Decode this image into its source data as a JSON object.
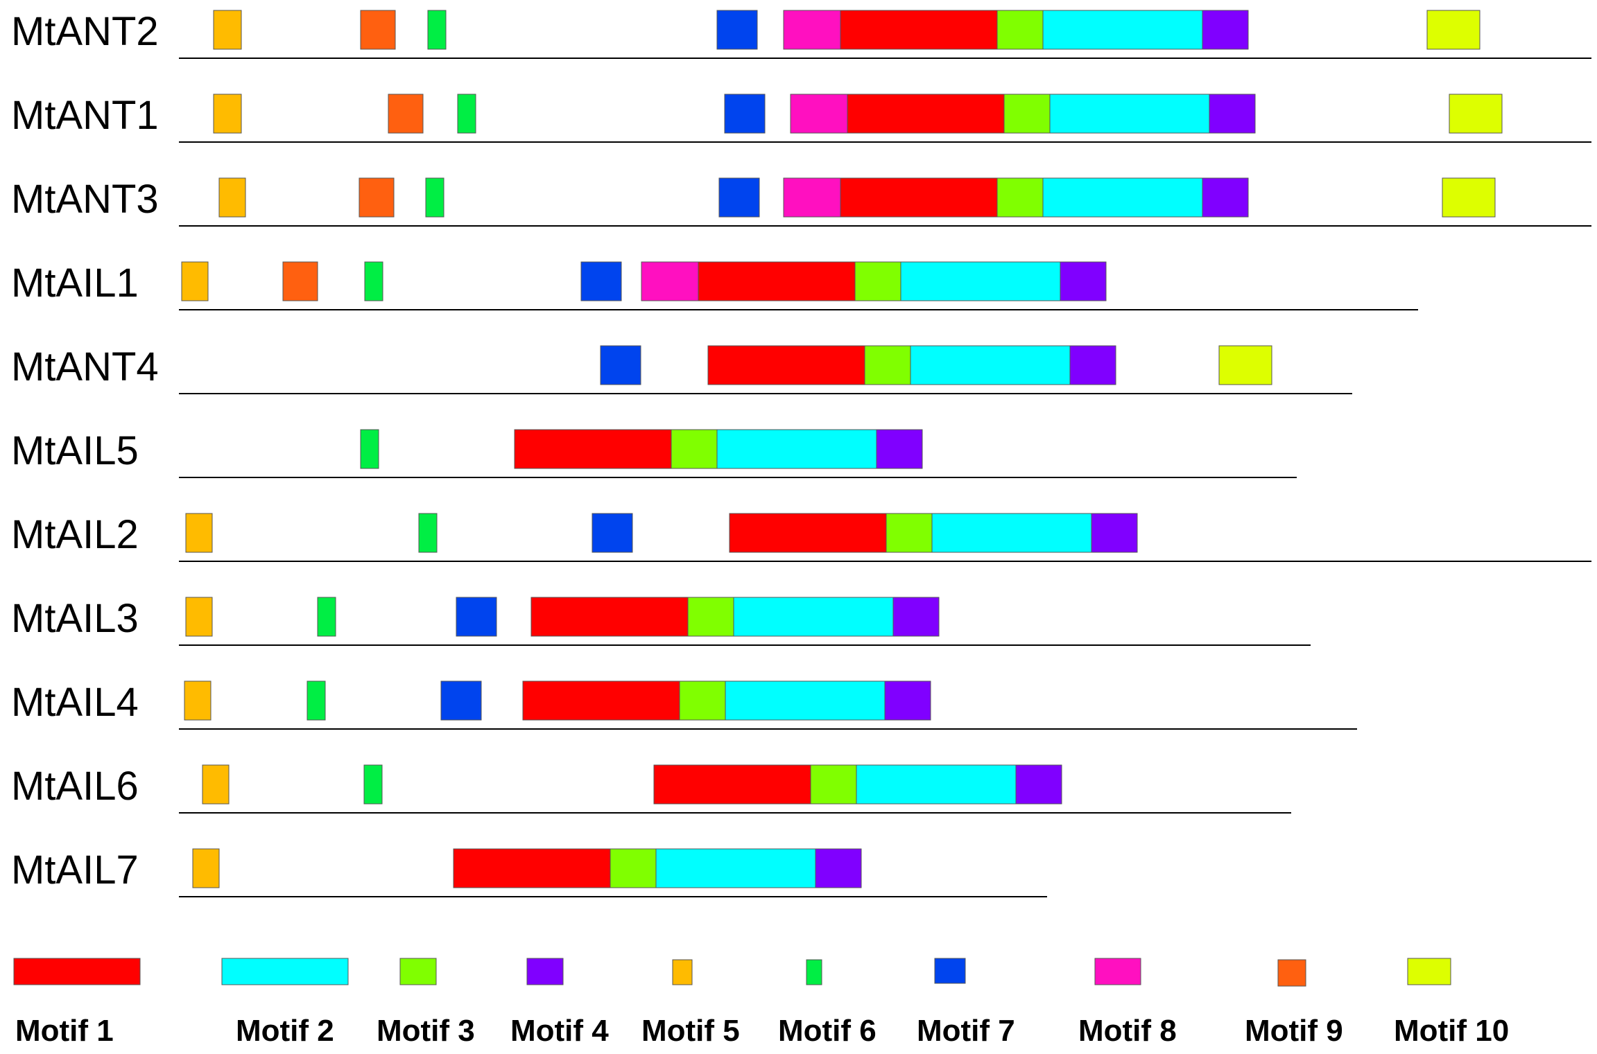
{
  "title": "",
  "colors": {
    "motif1": "#ff0000",
    "motif2": "#00ffff",
    "motif3": "#80ff00",
    "motif4": "#8000ff",
    "motif5": "#ffbb00",
    "motif6": "#00ee44",
    "motif7": "#0044ee",
    "motif8": "#ff10c0",
    "motif9": "#ff6010",
    "motif10": "#ddff00",
    "line": "#000000",
    "box_border": "#555555"
  },
  "legend": [
    {
      "key": "motif1",
      "label": "Motif 1"
    },
    {
      "key": "motif2",
      "label": "Motif 2"
    },
    {
      "key": "motif3",
      "label": "Motif 3"
    },
    {
      "key": "motif4",
      "label": "Motif 4"
    },
    {
      "key": "motif5",
      "label": "Motif 5"
    },
    {
      "key": "motif6",
      "label": "Motif 6"
    },
    {
      "key": "motif7",
      "label": "Motif 7"
    },
    {
      "key": "motif8",
      "label": "Motif 8"
    },
    {
      "key": "motif9",
      "label": "Motif 9"
    },
    {
      "key": "motif10",
      "label": "Motif 10"
    }
  ],
  "genes": [
    {
      "name": "MtANT2",
      "motif_order": [
        "motif5",
        "motif9",
        "motif6",
        "motif7",
        "motif8",
        "motif1",
        "motif3",
        "motif2",
        "motif4",
        "motif10"
      ]
    },
    {
      "name": "MtANT1",
      "motif_order": [
        "motif5",
        "motif9",
        "motif6",
        "motif7",
        "motif8",
        "motif1",
        "motif3",
        "motif2",
        "motif4",
        "motif10"
      ]
    },
    {
      "name": "MtANT3",
      "motif_order": [
        "motif5",
        "motif9",
        "motif6",
        "motif7",
        "motif8",
        "motif1",
        "motif3",
        "motif2",
        "motif4",
        "motif10"
      ]
    },
    {
      "name": "MtAIL1",
      "motif_order": [
        "motif5",
        "motif9",
        "motif6",
        "motif7",
        "motif8",
        "motif1",
        "motif3",
        "motif2",
        "motif4"
      ]
    },
    {
      "name": "MtANT4",
      "motif_order": [
        "motif7",
        "motif1",
        "motif3",
        "motif2",
        "motif4",
        "motif10"
      ]
    },
    {
      "name": "MtAIL5",
      "motif_order": [
        "motif6",
        "motif1",
        "motif3",
        "motif2",
        "motif4"
      ]
    },
    {
      "name": "MtAIL2",
      "motif_order": [
        "motif5",
        "motif6",
        "motif7",
        "motif1",
        "motif3",
        "motif2",
        "motif4"
      ]
    },
    {
      "name": "MtAIL3",
      "motif_order": [
        "motif5",
        "motif6",
        "motif7",
        "motif1",
        "motif3",
        "motif2",
        "motif4"
      ]
    },
    {
      "name": "MtAIL4",
      "motif_order": [
        "motif5",
        "motif6",
        "motif7",
        "motif1",
        "motif3",
        "motif2",
        "motif4"
      ]
    },
    {
      "name": "MtAIL6",
      "motif_order": [
        "motif5",
        "motif6",
        "motif1",
        "motif3",
        "motif2",
        "motif4"
      ]
    },
    {
      "name": "MtAIL7",
      "motif_order": [
        "motif5",
        "motif1",
        "motif3",
        "motif2",
        "motif4"
      ]
    }
  ]
}
